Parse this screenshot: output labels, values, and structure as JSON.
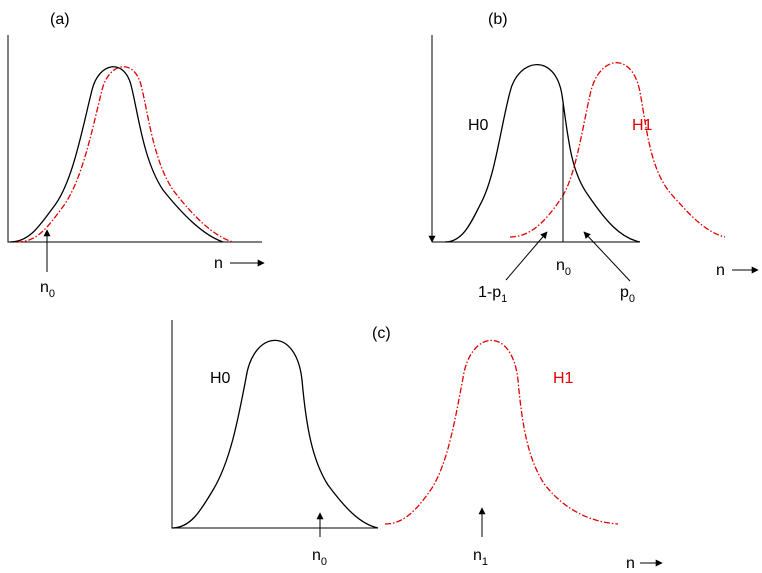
{
  "panels": [
    {
      "label": "(a)",
      "axis_label": "n",
      "markers": [
        {
          "base": "n",
          "sub": "0"
        }
      ]
    },
    {
      "label": "(b)",
      "axis_label": "n",
      "curves": [
        "H0",
        "H1"
      ],
      "markers": [
        {
          "base": "n",
          "sub": "0"
        },
        {
          "base": "1-p",
          "sub": "1"
        },
        {
          "base": "p",
          "sub": "0"
        }
      ]
    },
    {
      "label": "(c)",
      "axis_label": "n",
      "curves": [
        "H0",
        "H1"
      ],
      "markers": [
        {
          "base": "n",
          "sub": "0"
        },
        {
          "base": "n",
          "sub": "1"
        }
      ]
    }
  ]
}
